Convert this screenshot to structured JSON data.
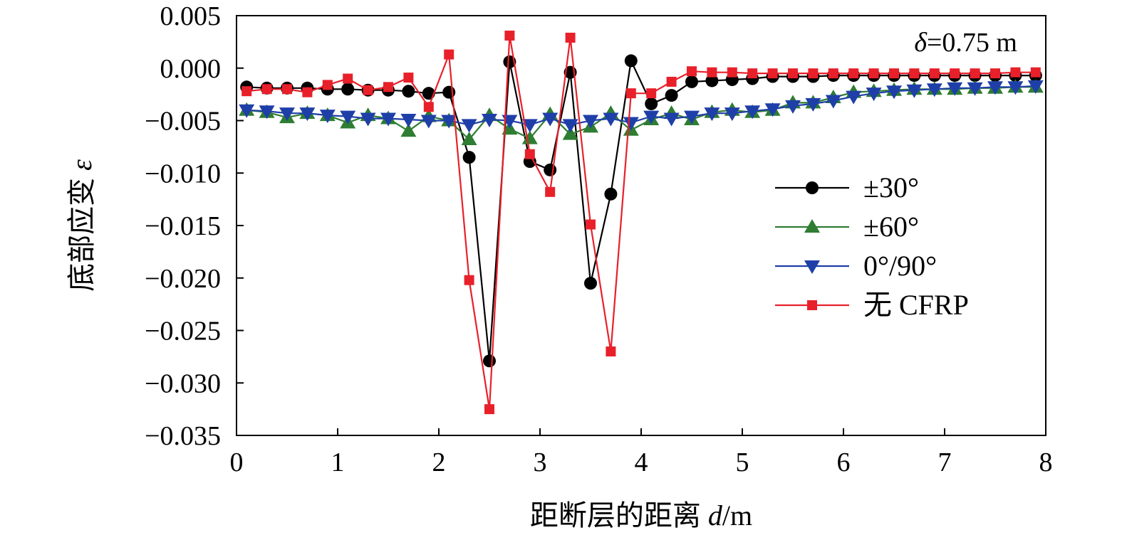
{
  "chart_data": {
    "type": "line",
    "xlabel": "距断层的距离 d/m",
    "ylabel": "底部应变 ε",
    "annotation": "δ=0.75 m",
    "xlim": [
      0,
      8
    ],
    "ylim": [
      -0.035,
      0.005
    ],
    "x_ticks": [
      0,
      1,
      2,
      3,
      4,
      5,
      6,
      7,
      8
    ],
    "y_ticks": [
      0.005,
      0.0,
      -0.005,
      -0.01,
      -0.015,
      -0.02,
      -0.025,
      -0.03,
      -0.035
    ],
    "x_tick_labels": [
      "0",
      "1",
      "2",
      "3",
      "4",
      "5",
      "6",
      "7",
      "8"
    ],
    "y_tick_labels": [
      "0.005",
      "0.000",
      "−0.005",
      "−0.010",
      "−0.015",
      "−0.020",
      "−0.025",
      "−0.030",
      "−0.035"
    ],
    "legend_position": "right",
    "grid": false,
    "x": [
      0.1,
      0.3,
      0.5,
      0.7,
      0.9,
      1.1,
      1.3,
      1.5,
      1.7,
      1.9,
      2.1,
      2.3,
      2.5,
      2.7,
      2.9,
      3.1,
      3.3,
      3.5,
      3.7,
      3.9,
      4.1,
      4.3,
      4.5,
      4.7,
      4.9,
      5.1,
      5.3,
      5.5,
      5.7,
      5.9,
      6.1,
      6.3,
      6.5,
      6.7,
      6.9,
      7.1,
      7.3,
      7.5,
      7.7,
      7.9
    ],
    "series": [
      {
        "name": "±30°",
        "color": "#000000",
        "marker": "circle",
        "values": [
          -0.0018,
          -0.0019,
          -0.0019,
          -0.0019,
          -0.002,
          -0.002,
          -0.0021,
          -0.0021,
          -0.0022,
          -0.0024,
          -0.0023,
          -0.0085,
          -0.0279,
          0.0006,
          -0.0089,
          -0.0097,
          -0.0004,
          -0.0205,
          -0.012,
          0.0007,
          -0.0034,
          -0.0026,
          -0.0013,
          -0.0012,
          -0.0011,
          -0.001,
          -0.0008,
          -0.0008,
          -0.0008,
          -0.0007,
          -0.0007,
          -0.0007,
          -0.0007,
          -0.0007,
          -0.0007,
          -0.0007,
          -0.0007,
          -0.0007,
          -0.0007,
          -0.0007
        ]
      },
      {
        "name": "±60°",
        "color": "#2e7d32",
        "marker": "triangle-up",
        "values": [
          -0.004,
          -0.0042,
          -0.0047,
          -0.0043,
          -0.0045,
          -0.0052,
          -0.0045,
          -0.0048,
          -0.006,
          -0.0046,
          -0.005,
          -0.0068,
          -0.0045,
          -0.0058,
          -0.0067,
          -0.0044,
          -0.0063,
          -0.0056,
          -0.0043,
          -0.0059,
          -0.0049,
          -0.0043,
          -0.0049,
          -0.0042,
          -0.004,
          -0.0042,
          -0.004,
          -0.0033,
          -0.0033,
          -0.0028,
          -0.0023,
          -0.0022,
          -0.0021,
          -0.002,
          -0.002,
          -0.002,
          -0.0019,
          -0.0019,
          -0.0018,
          -0.0018
        ]
      },
      {
        "name": "0°/90°",
        "color": "#1f3fa8",
        "marker": "triangle-down",
        "values": [
          -0.004,
          -0.0041,
          -0.0043,
          -0.0043,
          -0.0045,
          -0.0046,
          -0.0048,
          -0.0048,
          -0.0049,
          -0.005,
          -0.005,
          -0.0054,
          -0.0049,
          -0.005,
          -0.0054,
          -0.0048,
          -0.0054,
          -0.005,
          -0.0048,
          -0.0052,
          -0.0046,
          -0.0048,
          -0.0046,
          -0.0043,
          -0.0043,
          -0.0041,
          -0.0039,
          -0.0036,
          -0.0034,
          -0.0031,
          -0.0027,
          -0.0024,
          -0.0022,
          -0.0021,
          -0.002,
          -0.0019,
          -0.0019,
          -0.0018,
          -0.0018,
          -0.0017
        ]
      },
      {
        "name": "无 CFRP",
        "color": "#e8202a",
        "marker": "square",
        "values": [
          -0.0022,
          -0.002,
          -0.002,
          -0.0023,
          -0.0016,
          -0.001,
          -0.0021,
          -0.0018,
          -0.0009,
          -0.0037,
          0.0013,
          -0.0202,
          -0.0325,
          0.0031,
          -0.0082,
          -0.0118,
          0.0029,
          -0.0149,
          -0.027,
          -0.0024,
          -0.0024,
          -0.0013,
          -0.0003,
          -0.0004,
          -0.0004,
          -0.0005,
          -0.0005,
          -0.0005,
          -0.0005,
          -0.0005,
          -0.0005,
          -0.0005,
          -0.0005,
          -0.0005,
          -0.0005,
          -0.0005,
          -0.0005,
          -0.0005,
          -0.0004,
          -0.0004
        ]
      }
    ]
  }
}
